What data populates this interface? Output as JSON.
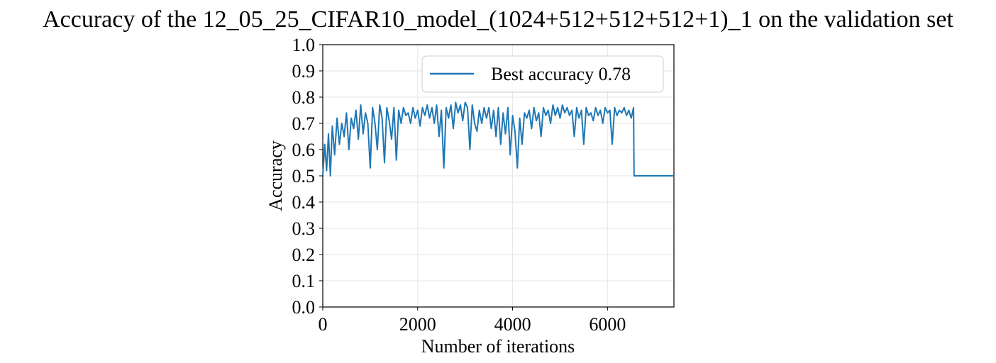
{
  "chart_data": {
    "type": "line",
    "title": "Accuracy of the 12_05_25_CIFAR10_model_(1024+512+512+512+1)_1 on the validation set",
    "xlabel": "Number of iterations",
    "ylabel": "Accuracy",
    "xlim": [
      0,
      7400
    ],
    "ylim": [
      0.0,
      1.0
    ],
    "xticks": [
      0,
      2000,
      4000,
      6000
    ],
    "yticks": [
      0.0,
      0.1,
      0.2,
      0.3,
      0.4,
      0.5,
      0.6,
      0.7,
      0.8,
      0.9,
      1.0
    ],
    "grid": true,
    "legend_position": "top-right",
    "series": [
      {
        "name": "Best accuracy 0.78",
        "color": "#1f77b4",
        "x": [
          0,
          40,
          80,
          120,
          160,
          200,
          250,
          300,
          350,
          400,
          450,
          500,
          550,
          600,
          650,
          700,
          750,
          800,
          850,
          900,
          950,
          1000,
          1050,
          1100,
          1150,
          1200,
          1250,
          1300,
          1350,
          1400,
          1450,
          1500,
          1550,
          1600,
          1650,
          1700,
          1750,
          1800,
          1850,
          1900,
          1950,
          2000,
          2050,
          2100,
          2150,
          2200,
          2250,
          2300,
          2350,
          2400,
          2450,
          2500,
          2550,
          2600,
          2650,
          2700,
          2750,
          2800,
          2850,
          2900,
          2950,
          3000,
          3050,
          3100,
          3150,
          3200,
          3250,
          3300,
          3350,
          3400,
          3450,
          3500,
          3550,
          3600,
          3650,
          3700,
          3750,
          3800,
          3850,
          3900,
          3950,
          4000,
          4050,
          4100,
          4150,
          4200,
          4250,
          4300,
          4350,
          4400,
          4450,
          4500,
          4550,
          4600,
          4650,
          4700,
          4750,
          4800,
          4850,
          4900,
          4950,
          5000,
          5050,
          5100,
          5150,
          5200,
          5250,
          5300,
          5350,
          5400,
          5450,
          5500,
          5550,
          5600,
          5650,
          5700,
          5750,
          5800,
          5850,
          5900,
          5950,
          6000,
          6050,
          6100,
          6150,
          6200,
          6250,
          6300,
          6350,
          6400,
          6450,
          6500,
          6550,
          6560,
          7400
        ],
        "y": [
          0.5,
          0.62,
          0.52,
          0.66,
          0.5,
          0.69,
          0.58,
          0.72,
          0.62,
          0.7,
          0.65,
          0.74,
          0.6,
          0.72,
          0.68,
          0.75,
          0.64,
          0.77,
          0.66,
          0.74,
          0.7,
          0.53,
          0.76,
          0.7,
          0.6,
          0.77,
          0.72,
          0.55,
          0.76,
          0.71,
          0.64,
          0.76,
          0.56,
          0.75,
          0.7,
          0.76,
          0.73,
          0.74,
          0.7,
          0.76,
          0.72,
          0.75,
          0.69,
          0.76,
          0.73,
          0.77,
          0.72,
          0.76,
          0.7,
          0.77,
          0.65,
          0.75,
          0.53,
          0.76,
          0.72,
          0.77,
          0.68,
          0.78,
          0.74,
          0.77,
          0.71,
          0.78,
          0.76,
          0.6,
          0.77,
          0.7,
          0.67,
          0.75,
          0.7,
          0.76,
          0.72,
          0.76,
          0.68,
          0.75,
          0.65,
          0.76,
          0.62,
          0.74,
          0.66,
          0.76,
          0.58,
          0.73,
          0.67,
          0.53,
          0.72,
          0.62,
          0.74,
          0.72,
          0.75,
          0.68,
          0.76,
          0.71,
          0.74,
          0.65,
          0.76,
          0.73,
          0.75,
          0.7,
          0.77,
          0.73,
          0.76,
          0.72,
          0.77,
          0.74,
          0.76,
          0.73,
          0.75,
          0.65,
          0.76,
          0.72,
          0.75,
          0.62,
          0.76,
          0.73,
          0.74,
          0.71,
          0.76,
          0.73,
          0.75,
          0.7,
          0.76,
          0.74,
          0.75,
          0.62,
          0.76,
          0.73,
          0.75,
          0.74,
          0.76,
          0.73,
          0.75,
          0.72,
          0.76,
          0.5,
          0.5
        ]
      }
    ]
  }
}
